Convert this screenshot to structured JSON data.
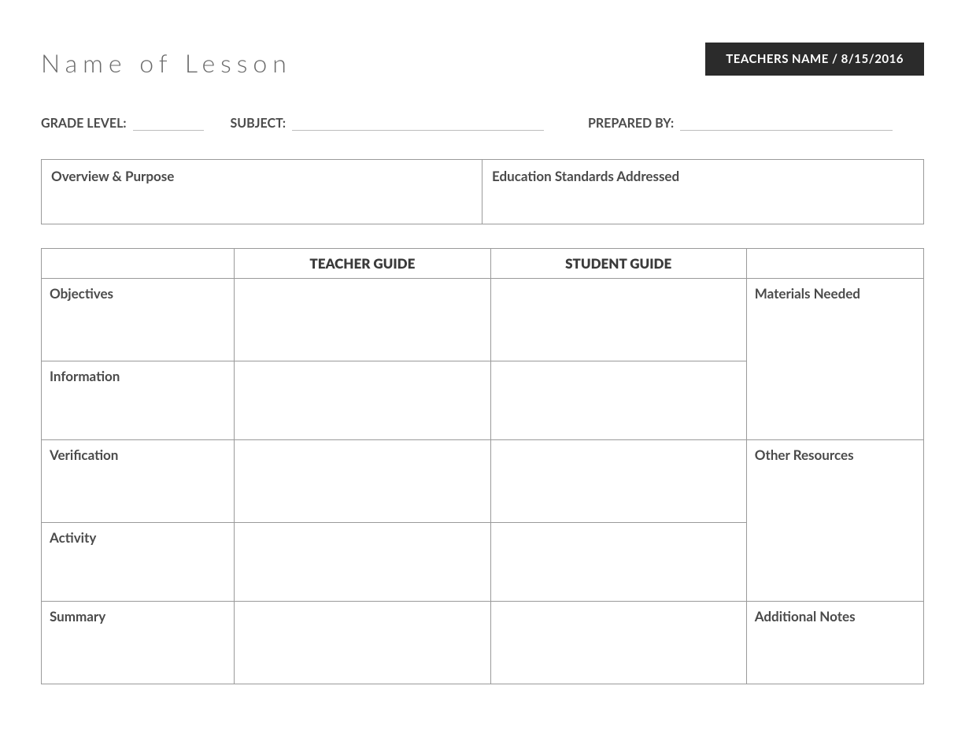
{
  "header": {
    "title": "Name of Lesson",
    "teacher_box": "TEACHERS NAME /  8/15/2016"
  },
  "meta": {
    "grade_label": "GRADE LEVEL:",
    "subject_label": "SUBJECT:",
    "prepared_by_label": "PREPARED BY:"
  },
  "overview": {
    "left_label": "Overview & Purpose",
    "right_label": "Education Standards Addressed"
  },
  "main": {
    "header_teacher": "TEACHER GUIDE",
    "header_student": "STUDENT GUIDE",
    "rows": [
      {
        "label": "Objectives"
      },
      {
        "label": "Information"
      },
      {
        "label": "Verification"
      },
      {
        "label": "Activity"
      },
      {
        "label": "Summary"
      }
    ],
    "side": {
      "materials": "Materials Needed",
      "resources": "Other Resources",
      "notes": "Additional Notes"
    }
  },
  "layout": {
    "grade_line_width": 90,
    "subject_line_width": 320,
    "prepared_line_width": 270,
    "meta_gap1": 34,
    "meta_gap2": 56,
    "row_height_tall": 105,
    "row_height_short": 92,
    "overview_left_width": 560
  },
  "colors": {
    "page_bg": "#ffffff",
    "text_main": "#4a4a4a",
    "text_header": "#3a3a3a",
    "title_color": "#6a6a6a",
    "border": "#9a9a9a",
    "underline": "#bdbdbd",
    "teacher_box_bg": "#2b2b2b",
    "teacher_box_text": "#ffffff"
  }
}
